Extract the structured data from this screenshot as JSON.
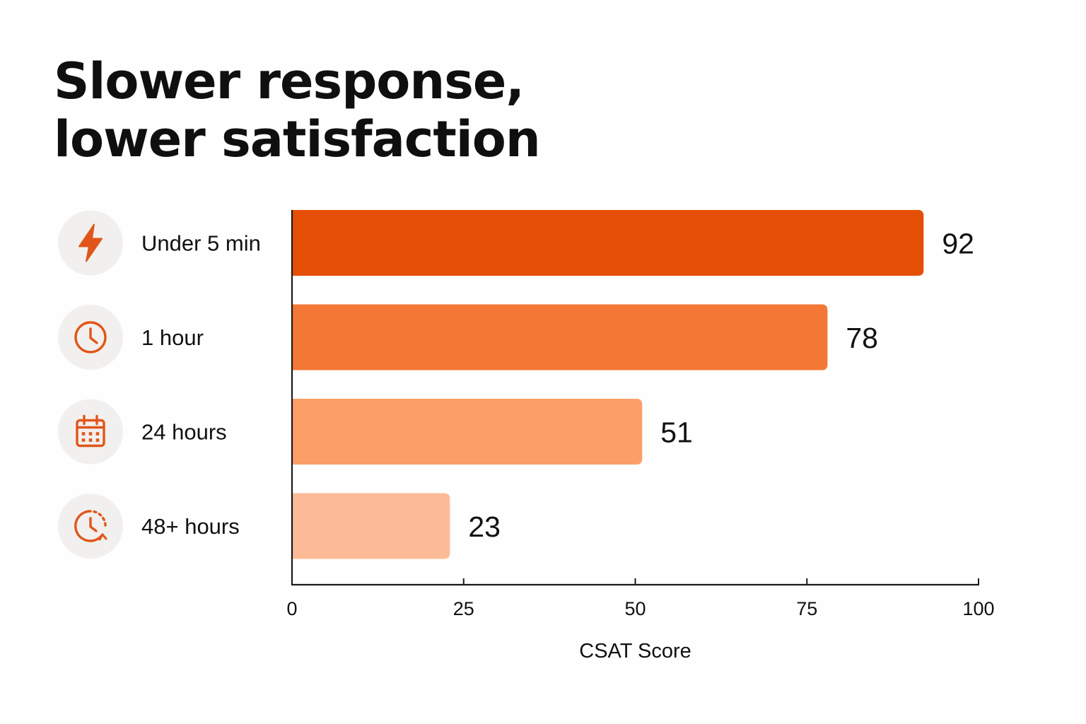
{
  "title_lines": [
    "Slower response,",
    "lower satisfaction"
  ],
  "colors": {
    "bars": [
      "#e54e05",
      "#f47835",
      "#fb9e67",
      "#fcbb96"
    ],
    "icon_accent": "#e0561a",
    "icon_badge": "#f2f0ee",
    "axis": "#1a1a1a",
    "text": "#111111"
  },
  "chart_data": {
    "type": "bar",
    "orientation": "horizontal",
    "categories": [
      "Under 5 min",
      "1 hour",
      "24 hours",
      "48+ hours"
    ],
    "category_icons": [
      "lightning-icon",
      "clock-icon",
      "calendar-icon",
      "clock-dashed-icon"
    ],
    "values": [
      92,
      78,
      51,
      23
    ],
    "data_labels": [
      "92",
      "78",
      "51",
      "23"
    ],
    "xlabel": "CSAT Score",
    "ylabel": "",
    "xlim": [
      0,
      100
    ],
    "xticks": [
      0,
      25,
      50,
      75,
      100
    ],
    "grid": false,
    "legend": "none"
  }
}
